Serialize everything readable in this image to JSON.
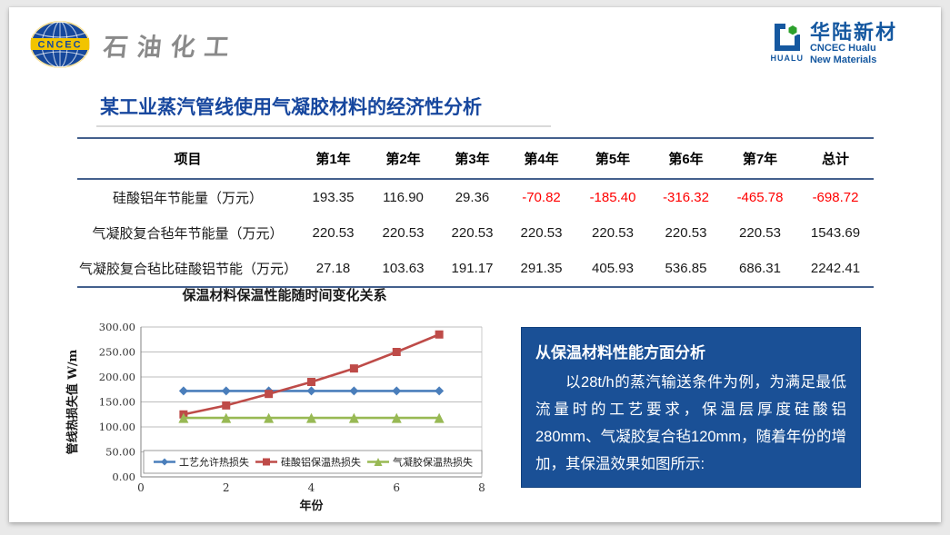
{
  "header": {
    "left_logo": {
      "badge_text": "CNCEC",
      "brand_text": "石油化工"
    },
    "right_logo": {
      "mark_text": "HUALU",
      "cn": "华陆新材",
      "en1": "CNCEC Hualu",
      "en2": "New Materials"
    }
  },
  "title": "某工业蒸汽管线使用气凝胶材料的经济性分析",
  "table": {
    "headers": [
      "项目",
      "第1年",
      "第2年",
      "第3年",
      "第4年",
      "第5年",
      "第6年",
      "第7年",
      "总计"
    ],
    "rows": [
      {
        "label": "硅酸铝年节能量（万元）",
        "values": [
          "193.35",
          "116.90",
          "29.36",
          "-70.82",
          "-185.40",
          "-316.32",
          "-465.78",
          "-698.72"
        ]
      },
      {
        "label": "气凝胶复合毡年节能量（万元）",
        "values": [
          "220.53",
          "220.53",
          "220.53",
          "220.53",
          "220.53",
          "220.53",
          "220.53",
          "1543.69"
        ]
      },
      {
        "label": "气凝胶复合毡比硅酸铝节能（万元）",
        "values": [
          "27.18",
          "103.63",
          "191.17",
          "291.35",
          "405.93",
          "536.85",
          "686.31",
          "2242.41"
        ]
      }
    ],
    "negative_color": "#ff0000"
  },
  "chart_data": {
    "type": "line",
    "title": "保温材料保温性能随时间变化关系",
    "xlabel": "年份",
    "ylabel": "管线热损失值 W/m",
    "xlim": [
      0,
      8
    ],
    "ylim": [
      0,
      300
    ],
    "xticks": [
      "0",
      "2",
      "4",
      "6",
      "8"
    ],
    "yticks": [
      "0.00",
      "50.00",
      "100.00",
      "150.00",
      "200.00",
      "250.00",
      "300.00"
    ],
    "grid": true,
    "legend_position": "bottom-inside",
    "x": [
      1,
      2,
      3,
      4,
      5,
      6,
      7
    ],
    "series": [
      {
        "name": "工艺允许热损失",
        "color": "#4a7ebb",
        "marker": "diamond",
        "values": [
          172,
          172,
          172,
          172,
          172,
          172,
          172
        ]
      },
      {
        "name": "硅酸铝保温热损失",
        "color": "#be4b48",
        "marker": "square",
        "values": [
          125,
          143,
          166,
          190,
          217,
          250,
          285
        ]
      },
      {
        "name": "气凝胶保温热损失",
        "color": "#98b954",
        "marker": "triangle",
        "values": [
          118,
          118,
          118,
          118,
          118,
          118,
          118
        ]
      }
    ]
  },
  "analysis": {
    "title": "从保温材料性能方面分析",
    "body": "以28t/h的蒸汽输送条件为例，为满足最低流量时的工艺要求，保温层厚度硅酸铝280mm、气凝胶复合毡120mm，随着年份的增加，其保温效果如图所示:",
    "bg": "#1a5096"
  }
}
